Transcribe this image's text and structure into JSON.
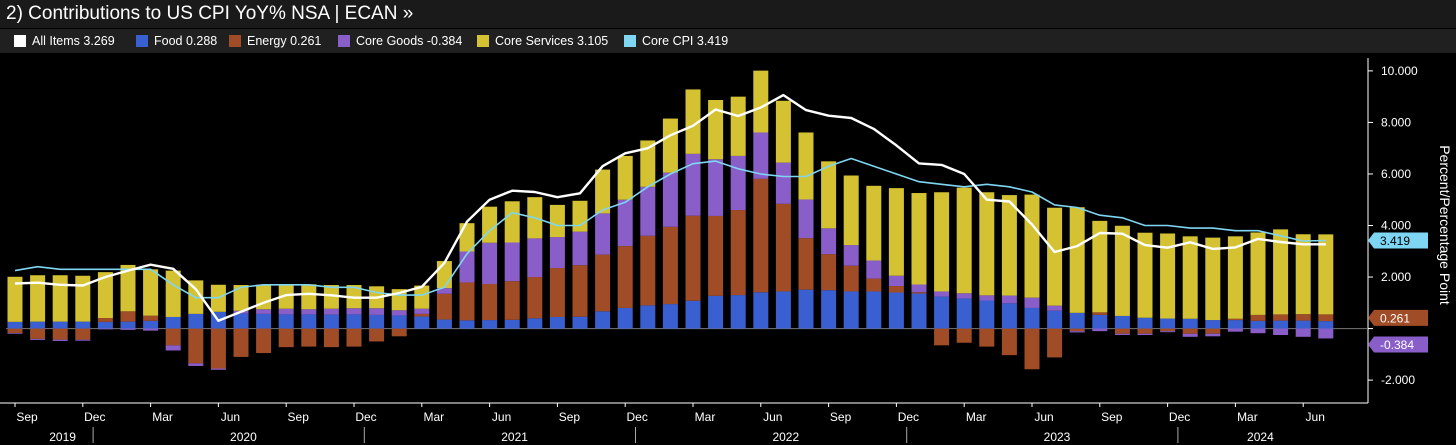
{
  "header": {
    "title": "2) Contributions to US CPI YoY% NSA | ECAN »"
  },
  "legend": [
    {
      "label": "All Items 3.269",
      "color": "#ffffff"
    },
    {
      "label": "Food 0.288",
      "color": "#3a5fd0"
    },
    {
      "label": "Energy 0.261",
      "color": "#a04c26"
    },
    {
      "label": "Core Goods -0.384",
      "color": "#8a5ec8"
    },
    {
      "label": "Core Services 3.105",
      "color": "#d4c232"
    },
    {
      "label": "Core CPI 3.419",
      "color": "#7fd6f2"
    }
  ],
  "chart_data": {
    "type": "bar",
    "stacked": true,
    "ylabel": "Percent/Percentage Point",
    "ylim": [
      -2.5,
      10.5
    ],
    "yticks": [
      -2.0,
      0,
      2.0,
      4.0,
      6.0,
      8.0,
      10.0
    ],
    "ytick_labels": [
      "-2.000",
      "",
      "2.000",
      "4.000",
      "6.000",
      "8.000",
      "10.000"
    ],
    "grid": false,
    "x_start": "2019-09",
    "month_tick_labels": [
      "Sep",
      "Dec",
      "Mar",
      "Jun",
      "Sep",
      "Dec",
      "Mar",
      "Jun",
      "Sep",
      "Dec",
      "Mar",
      "Jun",
      "Sep",
      "Dec",
      "Mar",
      "Jun",
      "Sep",
      "Dec",
      "Mar",
      "Jun"
    ],
    "month_tick_indices": [
      0,
      3,
      6,
      9,
      12,
      15,
      18,
      21,
      24,
      27,
      30,
      33,
      36,
      39,
      42,
      45,
      48,
      51,
      54,
      57
    ],
    "year_labels": [
      "2019",
      "2020",
      "2021",
      "2022",
      "2023",
      "2024"
    ],
    "year_label_indices": [
      1,
      9,
      21,
      33,
      45,
      54
    ],
    "year_separator_indices": [
      4,
      16,
      28,
      40,
      52
    ],
    "series": [
      {
        "name": "Food",
        "color": "#3a5fd0",
        "values": [
          0.26,
          0.27,
          0.27,
          0.27,
          0.26,
          0.27,
          0.3,
          0.45,
          0.57,
          0.65,
          0.59,
          0.57,
          0.55,
          0.55,
          0.54,
          0.55,
          0.53,
          0.51,
          0.47,
          0.35,
          0.32,
          0.33,
          0.34,
          0.4,
          0.45,
          0.46,
          0.67,
          0.8,
          0.9,
          0.95,
          1.08,
          1.27,
          1.3,
          1.41,
          1.44,
          1.51,
          1.49,
          1.44,
          1.44,
          1.4,
          1.36,
          1.24,
          1.17,
          1.09,
          0.98,
          0.8,
          0.69,
          0.61,
          0.53,
          0.49,
          0.42,
          0.39,
          0.38,
          0.33,
          0.33,
          0.3,
          0.31,
          0.31,
          0.29
        ]
      },
      {
        "name": "Energy",
        "color": "#a04c26",
        "values": [
          -0.17,
          -0.4,
          -0.43,
          -0.43,
          0.15,
          0.4,
          0.2,
          -0.65,
          -1.35,
          -1.55,
          -1.1,
          -0.95,
          -0.72,
          -0.7,
          -0.72,
          -0.7,
          -0.5,
          -0.3,
          0.1,
          1.0,
          1.47,
          1.4,
          1.5,
          1.6,
          1.9,
          2.0,
          2.2,
          2.4,
          2.7,
          3.0,
          3.3,
          3.1,
          3.3,
          4.4,
          3.4,
          2.0,
          1.4,
          1.0,
          0.5,
          0.25,
          0.05,
          -0.65,
          -0.55,
          -0.7,
          -1.03,
          -1.58,
          -1.12,
          -0.1,
          0.1,
          -0.2,
          -0.2,
          -0.1,
          -0.2,
          -0.2,
          0.05,
          0.23,
          0.24,
          0.25,
          0.261
        ]
      },
      {
        "name": "Core Goods",
        "color": "#8a5ec8",
        "values": [
          -0.03,
          -0.04,
          -0.05,
          -0.04,
          -0.03,
          -0.05,
          -0.08,
          -0.2,
          -0.1,
          -0.05,
          0.1,
          0.18,
          0.22,
          0.2,
          0.23,
          0.24,
          0.26,
          0.2,
          0.2,
          0.22,
          1.2,
          1.6,
          1.5,
          1.5,
          1.2,
          1.3,
          1.6,
          1.8,
          1.9,
          2.1,
          2.4,
          2.2,
          2.1,
          1.8,
          1.6,
          1.5,
          1.0,
          0.8,
          0.7,
          0.4,
          0.3,
          0.2,
          0.2,
          0.2,
          0.3,
          0.4,
          0.2,
          -0.05,
          -0.1,
          -0.05,
          -0.05,
          -0.04,
          -0.12,
          -0.1,
          -0.12,
          -0.18,
          -0.25,
          -0.32,
          -0.384
        ]
      },
      {
        "name": "Core Services",
        "color": "#d4c232",
        "values": [
          1.75,
          1.8,
          1.8,
          1.78,
          1.78,
          1.8,
          1.8,
          1.8,
          1.3,
          1.05,
          1.0,
          0.95,
          0.95,
          0.97,
          0.92,
          0.9,
          0.85,
          0.82,
          0.9,
          1.05,
          1.1,
          1.4,
          1.6,
          1.6,
          1.25,
          1.2,
          1.7,
          1.7,
          1.8,
          2.1,
          2.5,
          2.3,
          2.3,
          2.4,
          2.4,
          2.6,
          2.6,
          2.7,
          2.9,
          3.4,
          3.55,
          3.85,
          4.1,
          4.0,
          3.9,
          4.0,
          3.8,
          4.1,
          3.55,
          3.5,
          3.3,
          3.3,
          3.2,
          3.2,
          3.2,
          3.2,
          3.3,
          3.1,
          3.105
        ]
      }
    ],
    "lines": [
      {
        "name": "All Items",
        "color": "#ffffff",
        "values": [
          1.75,
          1.78,
          1.7,
          1.67,
          2.0,
          2.25,
          2.48,
          2.32,
          1.53,
          0.3,
          0.65,
          1.0,
          1.3,
          1.35,
          1.29,
          1.2,
          1.2,
          1.38,
          1.62,
          2.55,
          4.15,
          5.0,
          5.35,
          5.3,
          5.1,
          5.25,
          6.3,
          6.8,
          7.0,
          7.5,
          7.87,
          8.5,
          8.25,
          8.58,
          9.06,
          8.48,
          8.26,
          8.17,
          7.75,
          7.11,
          6.41,
          6.35,
          6.0,
          5.0,
          4.93,
          4.04,
          2.97,
          3.2,
          3.71,
          3.68,
          3.24,
          3.14,
          3.35,
          3.09,
          3.15,
          3.48,
          3.36,
          3.27,
          3.27
        ]
      },
      {
        "name": "Core CPI",
        "color": "#7fd6f2",
        "values": [
          2.25,
          2.4,
          2.3,
          2.3,
          2.3,
          2.3,
          2.3,
          1.7,
          1.2,
          1.2,
          1.6,
          1.7,
          1.7,
          1.7,
          1.6,
          1.6,
          1.4,
          1.3,
          1.3,
          1.6,
          2.9,
          3.8,
          4.5,
          4.3,
          4.0,
          4.0,
          4.6,
          4.9,
          5.5,
          6.0,
          6.4,
          6.5,
          6.2,
          6.0,
          5.9,
          5.9,
          6.3,
          6.6,
          6.3,
          6.0,
          5.7,
          5.6,
          5.5,
          5.6,
          5.5,
          5.3,
          4.8,
          4.7,
          4.4,
          4.3,
          4.0,
          4.0,
          3.9,
          3.9,
          3.8,
          3.8,
          3.6,
          3.4,
          3.419
        ]
      }
    ],
    "right_badges": [
      {
        "series": "Core CPI",
        "value": 3.419,
        "label": "3.419",
        "bg": "#7fd6f2",
        "fg": "#000000"
      },
      {
        "series": "Energy",
        "value": 0.261,
        "label": "0.261",
        "bg": "#a04c26",
        "fg": "#ffffff"
      },
      {
        "series": "Core Goods",
        "value": -0.384,
        "label": "-0.384",
        "bg": "#8a5ec8",
        "fg": "#ffffff"
      }
    ]
  }
}
